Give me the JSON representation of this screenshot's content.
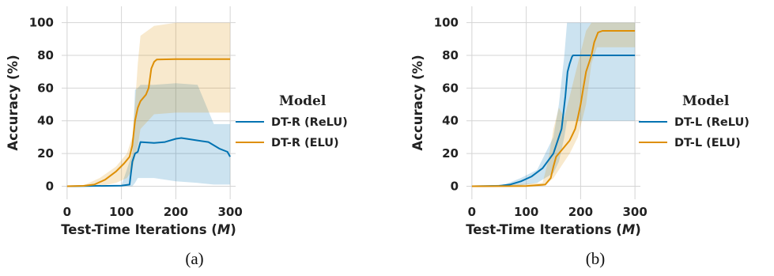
{
  "chart_data": [
    {
      "type": "line",
      "caption": "(a)",
      "xlabel": "Test-Time Iterations (",
      "xlabel_var": "M",
      "xlabel_close": ")",
      "ylabel": "Accuracy (%)",
      "xticks": [
        0,
        100,
        200,
        300
      ],
      "yticks": [
        0,
        20,
        40,
        60,
        80,
        100
      ],
      "xlim": [
        -10,
        310
      ],
      "ylim": [
        -8,
        110
      ],
      "grid": true,
      "legend": {
        "title": "Model",
        "placement": "right"
      },
      "series": [
        {
          "name": "DT-R (ReLU)",
          "color": "#0173b2",
          "x": [
            0,
            100,
            115,
            120,
            125,
            130,
            135,
            160,
            180,
            200,
            210,
            220,
            240,
            260,
            280,
            295,
            300
          ],
          "y": [
            0,
            0.3,
            1,
            15,
            20,
            21,
            27,
            26.5,
            27,
            29,
            29.5,
            29,
            28,
            27,
            23,
            21,
            18
          ],
          "band_x": [
            0,
            100,
            120,
            125,
            130,
            135,
            160,
            200,
            240,
            270,
            300
          ],
          "band_low": [
            0,
            0,
            0,
            2,
            5,
            5,
            5,
            3,
            2,
            1,
            1
          ],
          "band_high": [
            0,
            0.5,
            20,
            59,
            60,
            62,
            62,
            63,
            62,
            38,
            38
          ]
        },
        {
          "name": "DT-R (ELU)",
          "color": "#de8f05",
          "x": [
            0,
            30,
            50,
            70,
            90,
            105,
            115,
            120,
            125,
            130,
            135,
            145,
            150,
            155,
            160,
            165,
            200,
            250,
            300
          ],
          "y": [
            0,
            0.2,
            1,
            4,
            9,
            14,
            18,
            25,
            40,
            48,
            52,
            56,
            60,
            72,
            76,
            77.5,
            77.7,
            77.7,
            77.7
          ],
          "band_x": [
            0,
            30,
            60,
            90,
            110,
            120,
            125,
            130,
            135,
            160,
            200,
            300
          ],
          "band_low": [
            0,
            0,
            0,
            2,
            5,
            10,
            18,
            25,
            35,
            44,
            45,
            45
          ],
          "band_high": [
            0,
            0.5,
            5,
            12,
            20,
            30,
            50,
            75,
            92,
            98,
            100,
            100
          ]
        }
      ]
    },
    {
      "type": "line",
      "caption": "(b)",
      "xlabel": "Test-Time Iterations (",
      "xlabel_var": "M",
      "xlabel_close": ")",
      "ylabel": "Accuracy (%)",
      "xticks": [
        0,
        100,
        200,
        300
      ],
      "yticks": [
        0,
        20,
        40,
        60,
        80,
        100
      ],
      "xlim": [
        -10,
        310
      ],
      "ylim": [
        -8,
        110
      ],
      "grid": true,
      "legend": {
        "title": "Model",
        "placement": "right"
      },
      "series": [
        {
          "name": "DT-L (ReLU)",
          "color": "#0173b2",
          "x": [
            0,
            50,
            70,
            90,
            110,
            130,
            150,
            165,
            172,
            176,
            180,
            184,
            186,
            300
          ],
          "y": [
            0,
            0.2,
            1,
            3,
            6,
            11,
            20,
            35,
            55,
            70,
            75,
            79,
            80,
            80
          ],
          "band_x": [
            0,
            60,
            90,
            120,
            150,
            160,
            170,
            175,
            180,
            200,
            300
          ],
          "band_low": [
            0,
            0,
            0.5,
            2,
            8,
            15,
            30,
            40,
            40,
            40,
            40
          ],
          "band_high": [
            0,
            1,
            5,
            10,
            30,
            50,
            80,
            100,
            100,
            100,
            100
          ]
        },
        {
          "name": "DT-L (ELU)",
          "color": "#de8f05",
          "x": [
            0,
            100,
            135,
            145,
            150,
            155,
            165,
            180,
            190,
            195,
            200,
            205,
            210,
            215,
            220,
            225,
            232,
            240,
            300
          ],
          "y": [
            0,
            0.1,
            1,
            5,
            12,
            18,
            22,
            28,
            35,
            42,
            50,
            60,
            70,
            75,
            80,
            88,
            94,
            95,
            95
          ],
          "band_x": [
            0,
            130,
            140,
            150,
            160,
            170,
            180,
            195,
            210,
            220,
            230,
            300
          ],
          "band_low": [
            0,
            0,
            2,
            5,
            10,
            15,
            20,
            30,
            50,
            75,
            85,
            85
          ],
          "band_high": [
            0,
            2,
            15,
            35,
            48,
            42,
            55,
            75,
            95,
            100,
            100,
            100
          ]
        }
      ]
    }
  ]
}
